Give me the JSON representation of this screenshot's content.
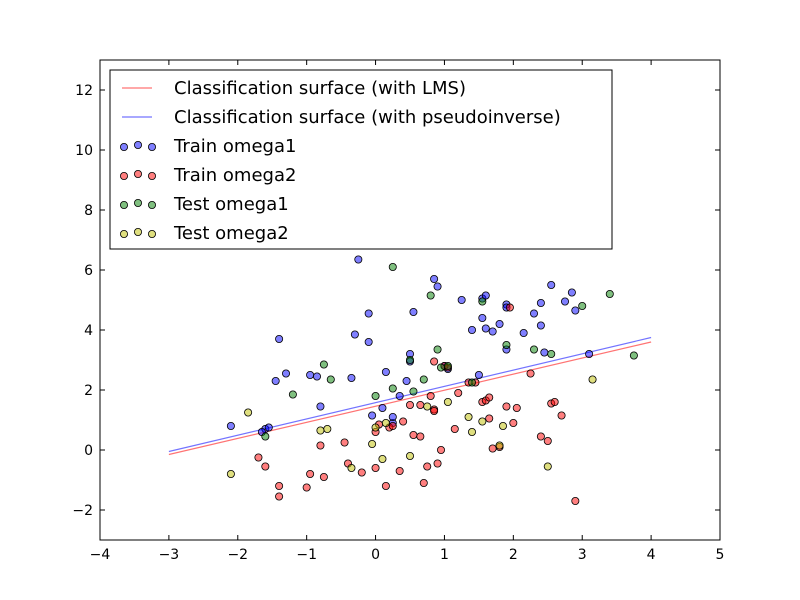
{
  "chart_data": {
    "type": "scatter",
    "title": "",
    "xlabel": "",
    "ylabel": "",
    "xlim": [
      -4,
      5
    ],
    "ylim": [
      -3,
      13
    ],
    "xticks": [
      -4,
      -3,
      -2,
      -1,
      0,
      1,
      2,
      3,
      4,
      5
    ],
    "yticks": [
      -2,
      0,
      2,
      4,
      6,
      8,
      10,
      12
    ],
    "xtick_labels": [
      "−4",
      "−3",
      "−2",
      "−1",
      "0",
      "1",
      "2",
      "3",
      "4",
      "5"
    ],
    "ytick_labels": [
      "−2",
      "0",
      "2",
      "4",
      "6",
      "8",
      "10",
      "12"
    ],
    "grid": false,
    "legend_position": "top-left",
    "lines": [
      {
        "name": "Classification surface (with LMS)",
        "color": "#ff0000",
        "points": [
          [
            -3,
            -0.15
          ],
          [
            4,
            3.6
          ]
        ]
      },
      {
        "name": "Classification surface (with pseudoinverse)",
        "color": "#0000ff",
        "points": [
          [
            -3,
            -0.05
          ],
          [
            4,
            3.75
          ]
        ]
      }
    ],
    "series": [
      {
        "name": "Train omega1",
        "color": "#0000ff",
        "points": [
          [
            -2.1,
            0.8
          ],
          [
            -1.6,
            0.7
          ],
          [
            -1.55,
            0.75
          ],
          [
            -1.65,
            0.6
          ],
          [
            -1.45,
            2.3
          ],
          [
            -1.4,
            3.7
          ],
          [
            -1.3,
            2.55
          ],
          [
            -0.95,
            2.5
          ],
          [
            -0.85,
            2.45
          ],
          [
            -0.8,
            1.45
          ],
          [
            -0.35,
            2.4
          ],
          [
            -0.3,
            3.85
          ],
          [
            -0.25,
            6.35
          ],
          [
            -0.1,
            4.55
          ],
          [
            -0.1,
            3.6
          ],
          [
            -0.05,
            1.15
          ],
          [
            0.1,
            1.4
          ],
          [
            0.15,
            2.6
          ],
          [
            0.25,
            0.9
          ],
          [
            0.25,
            1.1
          ],
          [
            0.35,
            1.8
          ],
          [
            0.45,
            2.3
          ],
          [
            0.5,
            3.2
          ],
          [
            0.5,
            2.95
          ],
          [
            0.55,
            4.6
          ],
          [
            0.85,
            5.7
          ],
          [
            0.9,
            5.45
          ],
          [
            1.0,
            2.8
          ],
          [
            1.05,
            2.7
          ],
          [
            1.25,
            5.0
          ],
          [
            1.4,
            4.0
          ],
          [
            1.5,
            2.5
          ],
          [
            1.55,
            4.4
          ],
          [
            1.55,
            5.05
          ],
          [
            1.6,
            5.15
          ],
          [
            1.6,
            4.05
          ],
          [
            1.7,
            3.95
          ],
          [
            1.8,
            4.2
          ],
          [
            1.9,
            4.85
          ],
          [
            1.9,
            4.75
          ],
          [
            1.9,
            3.35
          ],
          [
            2.15,
            3.9
          ],
          [
            2.3,
            4.55
          ],
          [
            2.4,
            4.9
          ],
          [
            2.4,
            4.15
          ],
          [
            2.45,
            3.25
          ],
          [
            2.55,
            5.5
          ],
          [
            2.75,
            4.95
          ],
          [
            2.85,
            5.25
          ],
          [
            2.9,
            4.65
          ],
          [
            3.1,
            3.2
          ]
        ]
      },
      {
        "name": "Train omega2",
        "color": "#ff0000",
        "points": [
          [
            -1.7,
            -0.25
          ],
          [
            -1.6,
            -0.55
          ],
          [
            -1.4,
            -1.2
          ],
          [
            -1.4,
            -1.55
          ],
          [
            -1.0,
            -1.25
          ],
          [
            -0.95,
            -0.8
          ],
          [
            -0.8,
            0.15
          ],
          [
            -0.75,
            -0.9
          ],
          [
            -0.45,
            0.25
          ],
          [
            -0.4,
            -0.45
          ],
          [
            -0.2,
            -0.75
          ],
          [
            0.0,
            -0.6
          ],
          [
            0.0,
            0.6
          ],
          [
            0.05,
            0.85
          ],
          [
            0.15,
            -1.2
          ],
          [
            0.2,
            0.75
          ],
          [
            0.25,
            0.8
          ],
          [
            0.35,
            -0.7
          ],
          [
            0.4,
            0.95
          ],
          [
            0.5,
            1.5
          ],
          [
            0.55,
            0.5
          ],
          [
            0.65,
            0.45
          ],
          [
            0.65,
            1.5
          ],
          [
            0.7,
            -1.1
          ],
          [
            0.75,
            -0.55
          ],
          [
            0.8,
            1.8
          ],
          [
            0.85,
            1.35
          ],
          [
            0.85,
            1.3
          ],
          [
            0.85,
            2.95
          ],
          [
            0.9,
            -0.45
          ],
          [
            0.95,
            0.0
          ],
          [
            1.0,
            2.8
          ],
          [
            1.05,
            2.75
          ],
          [
            1.15,
            0.7
          ],
          [
            1.2,
            1.9
          ],
          [
            1.35,
            2.25
          ],
          [
            1.45,
            2.25
          ],
          [
            1.55,
            1.6
          ],
          [
            1.6,
            1.65
          ],
          [
            1.65,
            1.05
          ],
          [
            1.65,
            1.75
          ],
          [
            1.7,
            0.05
          ],
          [
            1.8,
            0.1
          ],
          [
            1.9,
            1.45
          ],
          [
            1.95,
            4.75
          ],
          [
            2.0,
            0.9
          ],
          [
            2.05,
            1.4
          ],
          [
            2.25,
            2.55
          ],
          [
            2.4,
            0.45
          ],
          [
            2.5,
            0.3
          ],
          [
            2.55,
            1.55
          ],
          [
            2.6,
            1.6
          ],
          [
            2.7,
            1.15
          ],
          [
            2.9,
            -1.7
          ]
        ]
      },
      {
        "name": "Test omega1",
        "color": "#008000",
        "points": [
          [
            -1.6,
            0.45
          ],
          [
            -1.2,
            1.85
          ],
          [
            -0.75,
            2.85
          ],
          [
            -0.65,
            2.35
          ],
          [
            0.0,
            1.8
          ],
          [
            0.25,
            6.1
          ],
          [
            0.25,
            2.05
          ],
          [
            0.5,
            3.0
          ],
          [
            0.55,
            1.95
          ],
          [
            0.7,
            2.35
          ],
          [
            0.8,
            5.15
          ],
          [
            0.9,
            3.35
          ],
          [
            0.95,
            2.75
          ],
          [
            1.05,
            2.8
          ],
          [
            1.4,
            2.25
          ],
          [
            1.55,
            4.95
          ],
          [
            1.9,
            3.5
          ],
          [
            2.3,
            3.35
          ],
          [
            2.55,
            3.2
          ],
          [
            3.0,
            4.8
          ],
          [
            3.4,
            5.2
          ],
          [
            3.75,
            3.15
          ]
        ]
      },
      {
        "name": "Test omega2",
        "color": "#bfbf00",
        "points": [
          [
            -2.1,
            -0.8
          ],
          [
            -1.85,
            1.25
          ],
          [
            -0.8,
            0.65
          ],
          [
            -0.7,
            0.7
          ],
          [
            -0.35,
            -0.6
          ],
          [
            -0.05,
            0.2
          ],
          [
            0.0,
            0.75
          ],
          [
            0.1,
            -0.3
          ],
          [
            0.15,
            0.9
          ],
          [
            0.5,
            -0.2
          ],
          [
            0.75,
            1.45
          ],
          [
            1.05,
            1.6
          ],
          [
            1.35,
            1.1
          ],
          [
            1.4,
            0.6
          ],
          [
            1.55,
            0.95
          ],
          [
            1.8,
            0.15
          ],
          [
            1.85,
            0.8
          ],
          [
            2.5,
            -0.55
          ],
          [
            3.15,
            2.35
          ]
        ]
      }
    ]
  }
}
